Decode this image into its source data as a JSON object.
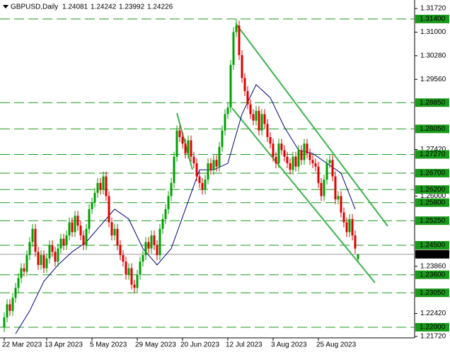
{
  "chart_data": {
    "type": "candlestick",
    "title": "GBPUSD,Daily",
    "header_values": [
      1.24081,
      1.24242,
      1.23992,
      1.24226
    ],
    "categories": [
      "22 Mar 2023",
      null,
      null,
      null,
      null,
      null,
      null,
      null,
      null,
      null,
      null,
      null,
      null,
      null,
      null,
      "13 Apr 2023",
      null,
      null,
      null,
      null,
      null,
      null,
      null,
      null,
      null,
      null,
      null,
      null,
      null,
      null,
      null,
      "5 May 2023",
      null,
      null,
      null,
      null,
      null,
      null,
      null,
      null,
      null,
      null,
      null,
      null,
      null,
      null,
      null,
      "29 May 2023",
      null,
      null,
      null,
      null,
      null,
      null,
      null,
      null,
      null,
      null,
      null,
      null,
      null,
      null,
      null,
      "20 Jun 2023",
      null,
      null,
      null,
      null,
      null,
      null,
      null,
      null,
      null,
      null,
      null,
      null,
      null,
      null,
      null,
      "12 Jul 2023",
      null,
      null,
      null,
      null,
      null,
      null,
      null,
      null,
      null,
      null,
      null,
      null,
      null,
      null,
      null,
      "3 Aug 2023",
      null,
      null,
      null,
      null,
      null,
      null,
      null,
      null,
      null,
      null,
      null,
      null,
      null,
      null,
      null,
      "25 Aug 2023",
      null,
      null,
      null,
      null,
      null,
      null,
      null,
      null,
      null,
      null,
      null,
      null,
      null,
      null
    ],
    "open": [
      1.22,
      1.223,
      1.227,
      1.225,
      1.229,
      1.232,
      1.235,
      1.238,
      1.237,
      1.242,
      1.246,
      1.25,
      1.243,
      1.239,
      1.242,
      1.238,
      1.241,
      1.245,
      1.243,
      1.24,
      1.244,
      1.247,
      1.245,
      1.248,
      1.252,
      1.249,
      1.254,
      1.251,
      1.248,
      1.245,
      1.25,
      1.256,
      1.258,
      1.261,
      1.264,
      1.262,
      1.266,
      1.26,
      1.252,
      1.248,
      1.25,
      1.245,
      1.242,
      1.24,
      1.236,
      1.238,
      1.233,
      1.232,
      1.236,
      1.24,
      1.242,
      1.246,
      1.244,
      1.248,
      1.245,
      1.242,
      1.25,
      1.253,
      1.256,
      1.26,
      1.264,
      1.272,
      1.28,
      1.278,
      1.276,
      1.273,
      1.277,
      1.272,
      1.27,
      1.266,
      1.264,
      1.262,
      1.265,
      1.27,
      1.268,
      1.271,
      1.269,
      1.275,
      1.28,
      1.285,
      1.287,
      1.3,
      1.31,
      1.312,
      1.303,
      1.296,
      1.292,
      1.288,
      1.285,
      1.283,
      1.286,
      1.28,
      1.285,
      1.282,
      1.278,
      1.276,
      1.272,
      1.27,
      1.276,
      1.274,
      1.272,
      1.27,
      1.268,
      1.272,
      1.269,
      1.274,
      1.271,
      1.276,
      1.273,
      1.271,
      1.27,
      1.269,
      1.264,
      1.26,
      1.265,
      1.27,
      1.271,
      1.266,
      1.259,
      1.26,
      1.255,
      1.252,
      1.249,
      1.253,
      1.248,
      1.24081
    ],
    "high": [
      1.2245,
      1.2285,
      1.2285,
      1.2305,
      1.2335,
      1.2365,
      1.2395,
      1.2395,
      1.2435,
      1.2475,
      1.2515,
      1.2515,
      1.2445,
      1.2435,
      1.2435,
      1.2425,
      1.2465,
      1.2465,
      1.2445,
      1.2455,
      1.2485,
      1.2485,
      1.2495,
      1.2535,
      1.2535,
      1.2555,
      1.2555,
      1.2525,
      1.2495,
      1.2515,
      1.2575,
      1.2595,
      1.2625,
      1.2655,
      1.2655,
      1.2675,
      1.2675,
      1.2615,
      1.2535,
      1.2515,
      1.2515,
      1.2465,
      1.2435,
      1.2415,
      1.2395,
      1.2395,
      1.2345,
      1.2375,
      1.2415,
      1.2435,
      1.2475,
      1.2475,
      1.2495,
      1.2495,
      1.2465,
      1.2515,
      1.2545,
      1.2575,
      1.2615,
      1.2655,
      1.2735,
      1.2815,
      1.2815,
      1.2795,
      1.2775,
      1.2785,
      1.2785,
      1.2735,
      1.2715,
      1.2675,
      1.2655,
      1.2665,
      1.2715,
      1.2715,
      1.2725,
      1.2725,
      1.2765,
      1.2815,
      1.2865,
      1.2885,
      1.3015,
      1.3115,
      1.314,
      1.3135,
      1.3045,
      1.2975,
      1.2935,
      1.2895,
      1.2865,
      1.2875,
      1.2875,
      1.2865,
      1.2865,
      1.2835,
      1.2795,
      1.2775,
      1.2735,
      1.2775,
      1.2775,
      1.2755,
      1.2735,
      1.2715,
      1.2735,
      1.2735,
      1.2755,
      1.2755,
      1.2775,
      1.2775,
      1.2745,
      1.2725,
      1.2715,
      1.2705,
      1.2655,
      1.2665,
      1.2715,
      1.2725,
      1.2725,
      1.2675,
      1.2615,
      1.2615,
      1.2565,
      1.2535,
      1.2545,
      1.2545,
      1.2495,
      1.24242
    ],
    "low": [
      1.2185,
      1.2215,
      1.2235,
      1.2235,
      1.2275,
      1.2305,
      1.2335,
      1.2355,
      1.2355,
      1.2405,
      1.2445,
      1.2415,
      1.2375,
      1.2375,
      1.2365,
      1.2365,
      1.2395,
      1.2415,
      1.2385,
      1.2385,
      1.2425,
      1.2435,
      1.2435,
      1.2465,
      1.2475,
      1.2475,
      1.2495,
      1.2465,
      1.2435,
      1.2435,
      1.2485,
      1.2545,
      1.2565,
      1.2595,
      1.2605,
      1.2605,
      1.2585,
      1.2505,
      1.2465,
      1.2465,
      1.2435,
      1.2405,
      1.2385,
      1.2345,
      1.2345,
      1.2315,
      1.2305,
      1.2305,
      1.2345,
      1.2385,
      1.2405,
      1.2425,
      1.2425,
      1.2435,
      1.2405,
      1.2405,
      1.2485,
      1.2515,
      1.2545,
      1.2585,
      1.2625,
      1.2705,
      1.2765,
      1.2745,
      1.2715,
      1.2715,
      1.2705,
      1.2685,
      1.2645,
      1.2625,
      1.2605,
      1.2605,
      1.2635,
      1.2665,
      1.2665,
      1.2675,
      1.2675,
      1.2735,
      1.2785,
      1.2835,
      1.2855,
      1.2985,
      1.3085,
      1.3015,
      1.2945,
      1.2905,
      1.2865,
      1.2835,
      1.2815,
      1.2815,
      1.2785,
      1.2785,
      1.2805,
      1.2765,
      1.2745,
      1.2705,
      1.2685,
      1.2685,
      1.2725,
      1.2705,
      1.2685,
      1.2665,
      1.2665,
      1.2675,
      1.2675,
      1.2695,
      1.2695,
      1.2715,
      1.2695,
      1.2685,
      1.2675,
      1.2625,
      1.2585,
      1.2585,
      1.2635,
      1.2685,
      1.2645,
      1.2575,
      1.2575,
      1.2535,
      1.2505,
      1.2475,
      1.2475,
      1.2465,
      1.2425,
      1.23992
    ],
    "close": [
      1.223,
      1.227,
      1.225,
      1.229,
      1.232,
      1.235,
      1.238,
      1.237,
      1.242,
      1.246,
      1.25,
      1.243,
      1.239,
      1.242,
      1.238,
      1.241,
      1.245,
      1.243,
      1.24,
      1.244,
      1.247,
      1.245,
      1.248,
      1.252,
      1.249,
      1.254,
      1.251,
      1.248,
      1.245,
      1.25,
      1.256,
      1.258,
      1.261,
      1.264,
      1.262,
      1.266,
      1.26,
      1.252,
      1.248,
      1.25,
      1.245,
      1.242,
      1.24,
      1.236,
      1.238,
      1.233,
      1.232,
      1.236,
      1.24,
      1.242,
      1.246,
      1.244,
      1.248,
      1.245,
      1.242,
      1.25,
      1.253,
      1.256,
      1.26,
      1.264,
      1.272,
      1.28,
      1.278,
      1.276,
      1.273,
      1.277,
      1.272,
      1.27,
      1.266,
      1.264,
      1.262,
      1.265,
      1.27,
      1.268,
      1.271,
      1.269,
      1.275,
      1.28,
      1.285,
      1.287,
      1.3,
      1.31,
      1.312,
      1.303,
      1.296,
      1.292,
      1.288,
      1.285,
      1.283,
      1.286,
      1.28,
      1.285,
      1.282,
      1.278,
      1.276,
      1.272,
      1.27,
      1.276,
      1.274,
      1.272,
      1.27,
      1.268,
      1.272,
      1.269,
      1.274,
      1.271,
      1.276,
      1.273,
      1.271,
      1.27,
      1.269,
      1.264,
      1.26,
      1.265,
      1.27,
      1.271,
      1.266,
      1.259,
      1.26,
      1.255,
      1.252,
      1.249,
      1.253,
      1.248,
      1.244,
      1.24226
    ],
    "up_color": "#00a000",
    "down_color": "#e00000",
    "ma": {
      "color": "#000080",
      "x": [
        4,
        9,
        14,
        19,
        24,
        29,
        34,
        39,
        44,
        49,
        54,
        59,
        64,
        69,
        74,
        79,
        84,
        89,
        94,
        99,
        104,
        109,
        114,
        119,
        124
      ],
      "values": [
        1.218,
        1.225,
        1.234,
        1.239,
        1.243,
        1.246,
        1.251,
        1.256,
        1.253,
        1.244,
        1.239,
        1.244,
        1.256,
        1.268,
        1.268,
        1.27,
        1.285,
        1.294,
        1.29,
        1.281,
        1.274,
        1.273,
        1.27,
        1.267,
        1.256
      ]
    },
    "ylim": [
      1.2159,
      1.3198
    ],
    "yticks": [
      {
        "value": 1.3172,
        "label": "1.31720"
      },
      {
        "value": 1.31,
        "label": "1.31000"
      },
      {
        "value": 1.3028,
        "label": "1.30280"
      },
      {
        "value": 1.2956,
        "label": "1.29560"
      },
      {
        "value": 1.2742,
        "label": "1.27420"
      },
      {
        "value": 1.26,
        "label": "1.26000"
      },
      {
        "value": 1.2386,
        "label": "1.23860"
      },
      {
        "value": 1.2242,
        "label": "1.22420"
      },
      {
        "value": 1.2172,
        "label": "1.21720"
      }
    ],
    "levels": [
      {
        "value": 1.314,
        "label": "1.31400"
      },
      {
        "value": 1.2885,
        "label": "1.28850"
      },
      {
        "value": 1.2805,
        "label": "1.28050"
      },
      {
        "value": 1.2727,
        "label": "1.27270"
      },
      {
        "value": 1.267,
        "label": "1.26700"
      },
      {
        "value": 1.262,
        "label": "1.26200"
      },
      {
        "value": 1.258,
        "label": "1.25800"
      },
      {
        "value": 1.2525,
        "label": "1.25250"
      },
      {
        "value": 1.245,
        "label": "1.24500"
      },
      {
        "value": 1.236,
        "label": "1.23600"
      },
      {
        "value": 1.2305,
        "label": "1.23050"
      },
      {
        "value": 1.22,
        "label": "1.22000"
      }
    ],
    "level_color": "#1a9a1a",
    "current_price": 1.24226
  }
}
